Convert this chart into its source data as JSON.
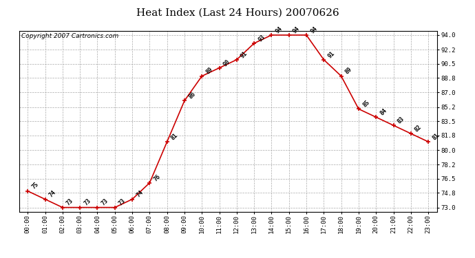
{
  "title": "Heat Index (Last 24 Hours) 20070626",
  "copyright": "Copyright 2007 Cartronics.com",
  "hours": [
    0,
    1,
    2,
    3,
    4,
    5,
    6,
    7,
    8,
    9,
    10,
    11,
    12,
    13,
    14,
    15,
    16,
    17,
    18,
    19,
    20,
    21,
    22,
    23
  ],
  "values": [
    75,
    74,
    73,
    73,
    73,
    73,
    74,
    76,
    81,
    86,
    89,
    90,
    91,
    93,
    94,
    94,
    94,
    91,
    89,
    85,
    84,
    83,
    82,
    81
  ],
  "x_labels": [
    "00:00",
    "01:00",
    "02:00",
    "03:00",
    "04:00",
    "05:00",
    "06:00",
    "07:00",
    "08:00",
    "09:00",
    "10:00",
    "11:00",
    "12:00",
    "13:00",
    "14:00",
    "15:00",
    "16:00",
    "17:00",
    "18:00",
    "19:00",
    "20:00",
    "21:00",
    "22:00",
    "23:00"
  ],
  "y_ticks": [
    73.0,
    74.8,
    76.5,
    78.2,
    80.0,
    81.8,
    83.5,
    85.2,
    87.0,
    88.8,
    90.5,
    92.2,
    94.0
  ],
  "ylim": [
    72.5,
    94.5
  ],
  "xlim": [
    -0.5,
    23.5
  ],
  "line_color": "#cc0000",
  "bg_color": "#ffffff",
  "grid_color": "#aaaaaa",
  "title_fontsize": 11,
  "annot_fontsize": 6,
  "copyright_fontsize": 6.5,
  "tick_fontsize": 6.5
}
